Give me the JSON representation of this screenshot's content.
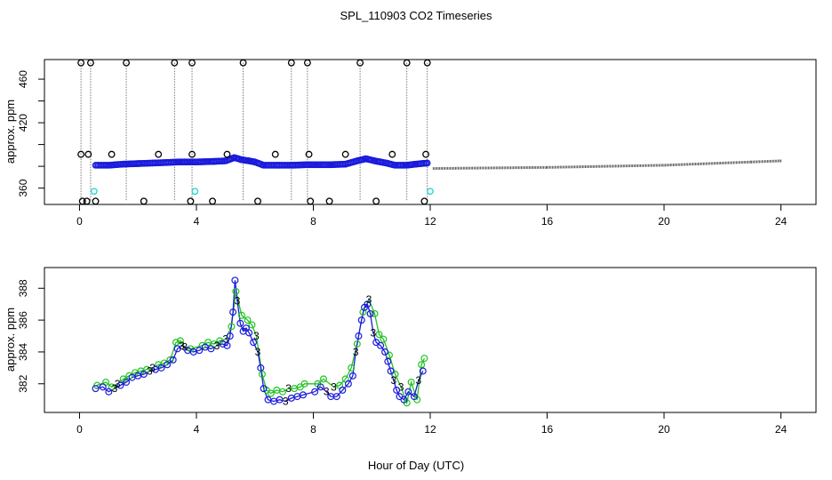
{
  "figure": {
    "title": "SPL_110903  CO2 Timeseries",
    "xlabel": "Hour of Day (UTC)"
  },
  "chart_data": [
    {
      "type": "scatter",
      "panel": "top",
      "ylabel": "approx. ppm",
      "xlim": [
        -1.2,
        25.2
      ],
      "ylim": [
        345,
        478
      ],
      "xticks": [
        0,
        4,
        8,
        12,
        16,
        20,
        24
      ],
      "yticks": [
        360,
        380,
        400,
        420,
        440,
        460
      ],
      "ytick_labels": [
        360,
        420,
        460
      ],
      "colors": {
        "main": "#1a1adc",
        "cyan": "#27d8d8",
        "outlier": "#000000",
        "tail": "#444444"
      },
      "outliers_high": [
        0.05,
        0.38,
        1.6,
        3.25,
        3.85,
        5.6,
        7.25,
        7.8,
        9.6,
        11.2,
        11.9
      ],
      "outliers_mid": [
        0.05,
        0.3,
        1.1,
        2.7,
        3.85,
        5.05,
        6.7,
        7.85,
        9.1,
        10.7,
        11.85
      ],
      "outliers_low": [
        0.1,
        0.25,
        0.55,
        2.2,
        3.8,
        4.55,
        6.1,
        7.9,
        8.55,
        10.15,
        11.8
      ],
      "cyan_points": [
        [
          0.5,
          357
        ],
        [
          3.95,
          357
        ],
        [
          12.0,
          357
        ]
      ],
      "series_points": [
        [
          0.55,
          381
        ],
        [
          1,
          381
        ],
        [
          1.5,
          382
        ],
        [
          2,
          382.5
        ],
        [
          2.5,
          383
        ],
        [
          3,
          383.5
        ],
        [
          3.4,
          384
        ],
        [
          3.6,
          384
        ],
        [
          4,
          384
        ],
        [
          4.6,
          384.5
        ],
        [
          5,
          385
        ],
        [
          5.3,
          388
        ],
        [
          5.55,
          386
        ],
        [
          5.8,
          385
        ],
        [
          6,
          384
        ],
        [
          6.3,
          381
        ],
        [
          6.8,
          381
        ],
        [
          7.3,
          381
        ],
        [
          7.8,
          381.5
        ],
        [
          8.2,
          381.5
        ],
        [
          8.6,
          381.5
        ],
        [
          9.1,
          382
        ],
        [
          9.5,
          385
        ],
        [
          9.8,
          387
        ],
        [
          10.1,
          385
        ],
        [
          10.5,
          383
        ],
        [
          10.8,
          381
        ],
        [
          11.2,
          381
        ],
        [
          11.5,
          382
        ],
        [
          11.9,
          383
        ]
      ],
      "tail_points": [
        [
          12.1,
          378
        ],
        [
          16,
          379
        ],
        [
          20,
          381
        ],
        [
          23,
          384
        ],
        [
          24,
          385
        ]
      ]
    },
    {
      "type": "scatter",
      "panel": "bottom",
      "ylabel": "approx. ppm",
      "xlim": [
        -1.2,
        25.2
      ],
      "ylim": [
        380.2,
        389.3
      ],
      "xticks": [
        0,
        4,
        8,
        12,
        16,
        20,
        24
      ],
      "yticks": [
        382,
        384,
        386,
        388
      ],
      "colors": {
        "series_a": "#1a1adc",
        "series_b": "#22c322"
      },
      "marker_label": "3",
      "series_a": [
        [
          0.55,
          381.7
        ],
        [
          0.8,
          381.8
        ],
        [
          1,
          381.5
        ],
        [
          1.2,
          381.7
        ],
        [
          1.4,
          381.9
        ],
        [
          1.6,
          382.1
        ],
        [
          1.8,
          382.4
        ],
        [
          2,
          382.5
        ],
        [
          2.2,
          382.6
        ],
        [
          2.4,
          382.8
        ],
        [
          2.6,
          382.9
        ],
        [
          2.8,
          383
        ],
        [
          3,
          383.2
        ],
        [
          3.2,
          383.5
        ],
        [
          3.35,
          384.2
        ],
        [
          3.5,
          384.4
        ],
        [
          3.7,
          384.1
        ],
        [
          3.9,
          384
        ],
        [
          4.1,
          384.1
        ],
        [
          4.3,
          384.3
        ],
        [
          4.5,
          384.2
        ],
        [
          4.7,
          384.4
        ],
        [
          4.9,
          384.5
        ],
        [
          5.05,
          384.4
        ],
        [
          5.15,
          385
        ],
        [
          5.25,
          386.5
        ],
        [
          5.32,
          388.5
        ],
        [
          5.4,
          387.2
        ],
        [
          5.5,
          385.8
        ],
        [
          5.6,
          385.3
        ],
        [
          5.7,
          385.5
        ],
        [
          5.8,
          385.2
        ],
        [
          5.95,
          384.6
        ],
        [
          6.1,
          384
        ],
        [
          6.2,
          383
        ],
        [
          6.3,
          381.7
        ],
        [
          6.45,
          381
        ],
        [
          6.65,
          380.9
        ],
        [
          6.85,
          381
        ],
        [
          7.05,
          380.9
        ],
        [
          7.25,
          381.1
        ],
        [
          7.45,
          381.2
        ],
        [
          7.65,
          381.3
        ],
        [
          8.05,
          381.5
        ],
        [
          8.25,
          381.8
        ],
        [
          8.45,
          381.5
        ],
        [
          8.6,
          381.2
        ],
        [
          8.8,
          381.2
        ],
        [
          9.0,
          381.6
        ],
        [
          9.2,
          382
        ],
        [
          9.35,
          382.5
        ],
        [
          9.45,
          384
        ],
        [
          9.55,
          385
        ],
        [
          9.65,
          386
        ],
        [
          9.75,
          386.8
        ],
        [
          9.85,
          387
        ],
        [
          9.95,
          386.4
        ],
        [
          10.05,
          385.2
        ],
        [
          10.15,
          384.6
        ],
        [
          10.3,
          384.4
        ],
        [
          10.45,
          384
        ],
        [
          10.55,
          383.4
        ],
        [
          10.65,
          382.8
        ],
        [
          10.75,
          382.2
        ],
        [
          10.85,
          381.6
        ],
        [
          10.95,
          381.2
        ],
        [
          11.1,
          381
        ],
        [
          11.25,
          381.5
        ],
        [
          11.45,
          381.2
        ],
        [
          11.6,
          382.2
        ],
        [
          11.75,
          382.8
        ]
      ],
      "series_b": [
        [
          0.6,
          381.9
        ],
        [
          0.9,
          382.1
        ],
        [
          1.1,
          381.8
        ],
        [
          1.3,
          382
        ],
        [
          1.5,
          382.3
        ],
        [
          1.7,
          382.5
        ],
        [
          1.9,
          382.7
        ],
        [
          2.1,
          382.8
        ],
        [
          2.3,
          382.9
        ],
        [
          2.5,
          383
        ],
        [
          2.7,
          383.2
        ],
        [
          2.9,
          383.3
        ],
        [
          3.1,
          383.5
        ],
        [
          3.3,
          384.6
        ],
        [
          3.45,
          384.7
        ],
        [
          3.6,
          384.3
        ],
        [
          3.8,
          384.2
        ],
        [
          4.2,
          384.4
        ],
        [
          4.4,
          384.6
        ],
        [
          4.6,
          384.5
        ],
        [
          4.8,
          384.7
        ],
        [
          5.0,
          384.8
        ],
        [
          5.2,
          385.6
        ],
        [
          5.35,
          387.8
        ],
        [
          5.55,
          386.3
        ],
        [
          5.75,
          386
        ],
        [
          5.9,
          385.7
        ],
        [
          6.05,
          385
        ],
        [
          6.25,
          382.6
        ],
        [
          6.4,
          381.6
        ],
        [
          6.55,
          381.4
        ],
        [
          6.75,
          381.6
        ],
        [
          6.95,
          381.5
        ],
        [
          7.15,
          381.7
        ],
        [
          7.35,
          381.7
        ],
        [
          7.55,
          381.8
        ],
        [
          7.7,
          382
        ],
        [
          8.15,
          382
        ],
        [
          8.35,
          382.3
        ],
        [
          8.7,
          381.8
        ],
        [
          8.9,
          381.9
        ],
        [
          9.1,
          382.3
        ],
        [
          9.3,
          383
        ],
        [
          9.5,
          384.5
        ],
        [
          9.7,
          386.5
        ],
        [
          9.9,
          387.3
        ],
        [
          10.1,
          386.4
        ],
        [
          10.25,
          385.1
        ],
        [
          10.4,
          384.8
        ],
        [
          10.6,
          383.8
        ],
        [
          10.8,
          382.6
        ],
        [
          11.0,
          381.8
        ],
        [
          11.2,
          380.8
        ],
        [
          11.35,
          382.1
        ],
        [
          11.55,
          381
        ],
        [
          11.7,
          383.2
        ],
        [
          11.8,
          383.6
        ]
      ]
    }
  ]
}
